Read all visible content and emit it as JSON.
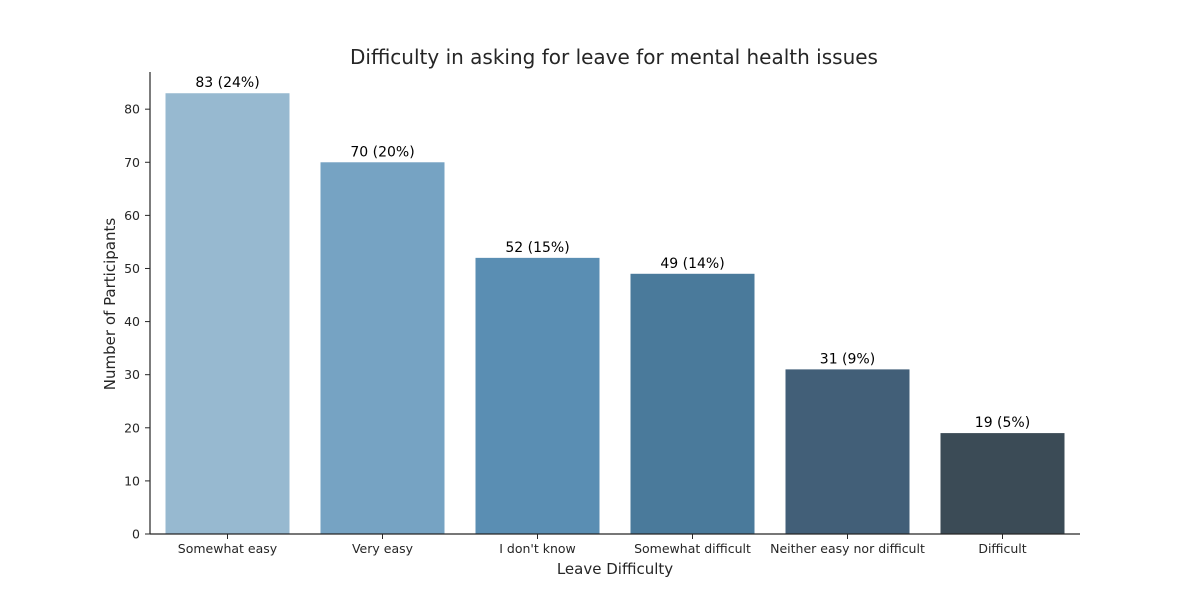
{
  "chart_data": {
    "type": "bar",
    "title": "Difficulty in asking for leave for mental health issues",
    "xlabel": "Leave Difficulty",
    "ylabel": "Number of Participants",
    "categories": [
      "Somewhat easy",
      "Very easy",
      "I don't know",
      "Somewhat difficult",
      "Neither easy nor difficult",
      "Difficult"
    ],
    "values": [
      83,
      70,
      52,
      49,
      31,
      19
    ],
    "data_labels": [
      "83 (24%)",
      "70 (20%)",
      "52 (15%)",
      "49 (14%)",
      "31 (9%)",
      "19 (5%)"
    ],
    "yticks": [
      0,
      10,
      20,
      30,
      40,
      50,
      60,
      70,
      80
    ],
    "ylim": [
      0,
      87
    ],
    "grid": false,
    "colors": [
      "#97B9D0",
      "#76A3C3",
      "#5A8EB3",
      "#4A7A9B",
      "#425F78",
      "#3B4B56"
    ],
    "axis_color": "#262626",
    "text_color": "#262626",
    "label_color": "#000000"
  }
}
